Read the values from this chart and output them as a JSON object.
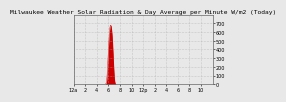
{
  "title": "Milwaukee Weather Solar Radiation & Day Average per Minute W/m2 (Today)",
  "bg_color": "#e8e8e8",
  "plot_bg_color": "#e8e8e8",
  "grid_color": "#aaaaaa",
  "fill_color": "#cc0000",
  "line_color": "#cc0000",
  "blue_bar_color": "#0000cc",
  "x_min": 0,
  "x_max": 1440,
  "y_min": 0,
  "y_max": 800,
  "solar_data_start": 330,
  "solar_data": [
    2,
    3,
    4,
    5,
    6,
    8,
    10,
    13,
    17,
    22,
    28,
    35,
    44,
    54,
    65,
    78,
    92,
    108,
    125,
    144,
    164,
    185,
    207,
    230,
    254,
    278,
    303,
    328,
    353,
    378,
    402,
    425,
    447,
    468,
    488,
    507,
    525,
    542,
    558,
    573,
    587,
    600,
    612,
    623,
    633,
    642,
    650,
    657,
    663,
    668,
    672,
    675,
    677,
    678,
    678,
    677,
    675,
    672,
    668,
    663,
    657,
    650,
    642,
    633,
    623,
    612,
    600,
    587,
    573,
    558,
    542,
    525,
    507,
    488,
    468,
    447,
    425,
    402,
    378,
    353,
    328,
    303,
    278,
    254,
    230,
    207,
    185,
    164,
    144,
    125,
    108,
    92,
    78,
    65,
    54,
    44,
    35,
    28,
    22,
    17,
    13,
    10,
    8,
    6,
    5,
    4,
    3,
    2,
    1,
    0
  ],
  "blue_bar_x": 305,
  "blue_bar_width": 8,
  "blue_bar_height": 180,
  "yticks": [
    0,
    100,
    200,
    300,
    400,
    500,
    600,
    700
  ],
  "xticks_pos": [
    0,
    120,
    240,
    360,
    480,
    600,
    720,
    840,
    960,
    1080,
    1200,
    1320
  ],
  "xticks_labels": [
    "12a",
    "2",
    "4",
    "6",
    "8",
    "10",
    "12p",
    "2",
    "4",
    "6",
    "8",
    "10"
  ],
  "grid_lines_x": [
    0,
    120,
    240,
    360,
    480,
    600,
    720,
    840,
    960,
    1080,
    1200,
    1320,
    1440
  ],
  "grid_lines_y": [
    0,
    100,
    200,
    300,
    400,
    500,
    600,
    700
  ],
  "title_fontsize": 4.5,
  "tick_fontsize": 3.5
}
